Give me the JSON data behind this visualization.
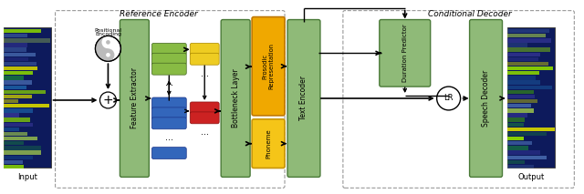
{
  "fig_width": 6.4,
  "fig_height": 2.13,
  "dpi": 100,
  "green_face": "#8fba78",
  "green_edge": "#4a7a38",
  "yellow_face": "#f5c518",
  "yellow_edge": "#c8960a",
  "orange_face": "#f0a800",
  "orange_edge": "#c07800",
  "title_ref": "Reference Encoder",
  "title_cond": "Conditional Decoder",
  "label_input": "Input",
  "label_output": "Output",
  "label_pos_enc_1": "Positional",
  "label_pos_enc_2": "Encoding",
  "label_feat_ext": "Feature Extractor",
  "label_bottleneck": "Bottleneck Layer",
  "label_prosodic_1": "Prosodic",
  "label_prosodic_2": "Representation",
  "label_phoneme": "Phoneme",
  "label_text_enc": "Text Encoder",
  "label_dur_pred": "Duration Predictor",
  "label_speech_dec": "Speech Decoder",
  "label_lr": "LR",
  "spec_colors": [
    "#2a6a2a",
    "#cccc00",
    "#1a5a9e",
    "#3a3a9e",
    "#aad44a",
    "#1a8a3a",
    "#8ad400",
    "#4466aa"
  ],
  "green_bar_color": "#88bb44",
  "green_bar_edge": "#446622",
  "blue_bar_color": "#3366bb",
  "blue_bar_edge": "#1a3388",
  "yellow_bar_color": "#eecc22",
  "yellow_bar_edge": "#aa8800",
  "red_bar_color": "#cc2222",
  "red_bar_edge": "#881111"
}
